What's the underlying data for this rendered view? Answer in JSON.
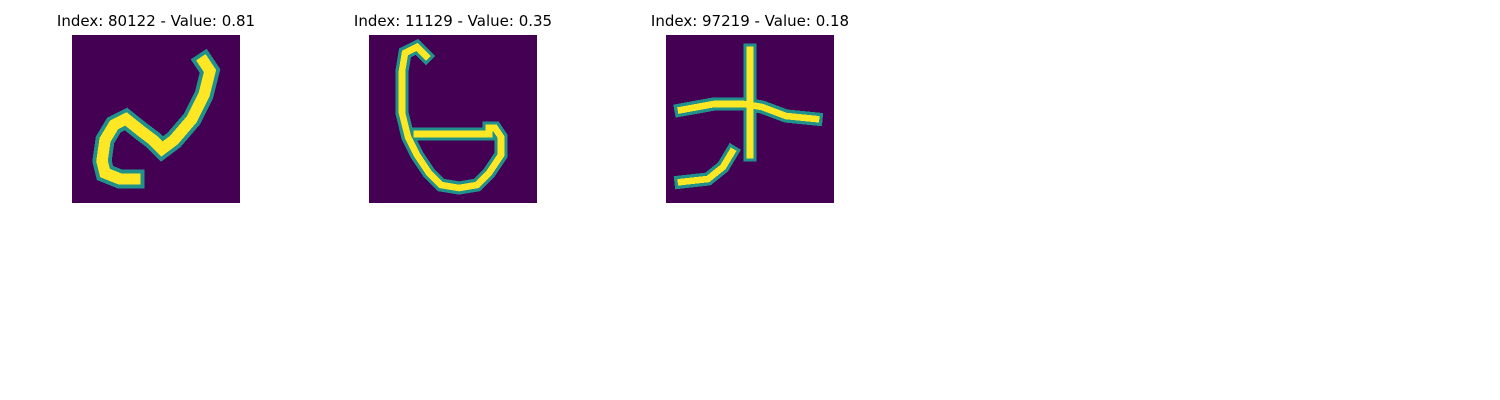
{
  "colors": {
    "background": "#440154",
    "stroke_high": "#fde725",
    "stroke_mid": "#5ec962",
    "stroke_low": "#21918c"
  },
  "panels": [
    {
      "title": "Index: 80122 - Value: 0.81"
    },
    {
      "title": "Index: 11129 - Value: 0.35"
    },
    {
      "title": "Index: 97219 - Value: 0.18"
    }
  ]
}
